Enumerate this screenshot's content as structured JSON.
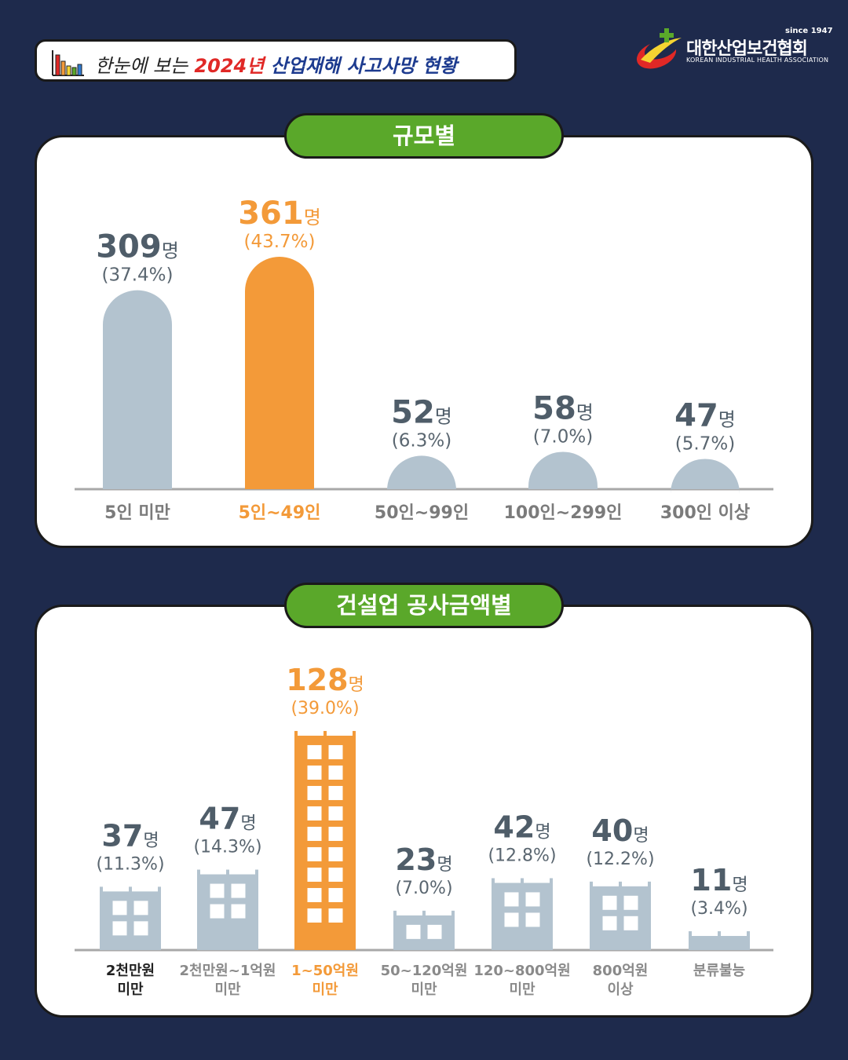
{
  "header": {
    "title_prefix": "한눈에 보는",
    "title_year": "2024년",
    "title_suffix": "산업재해 사고사망 현황"
  },
  "logo": {
    "since": "since 1947",
    "name_ko": "대한산업보건협회",
    "name_en": "KOREAN INDUSTRIAL HEALTH ASSOCIATION"
  },
  "colors": {
    "background": "#1e2a4c",
    "highlight": "#f39a39",
    "bar_default": "#b3c3cf",
    "pill_green": "#5aa82a",
    "value_text": "#4f5d69"
  },
  "chart_data": [
    {
      "type": "bar",
      "title": "규모별",
      "unit": "명",
      "categories": [
        "5인 미만",
        "5인~49인",
        "50인~99인",
        "100인~299인",
        "300인 이상"
      ],
      "values": [
        309,
        361,
        52,
        58,
        47
      ],
      "percent_labels": [
        "(37.4%)",
        "(43.7%)",
        "(6.3%)",
        "(7.0%)",
        "(5.7%)"
      ],
      "highlight_index": 1
    },
    {
      "type": "bar",
      "title": "건설업 공사금액별",
      "unit": "명",
      "categories": [
        [
          "2천만원",
          "미만"
        ],
        [
          "2천만원~1억원",
          "미만"
        ],
        [
          "1~50억원",
          "미만"
        ],
        [
          "50~120억원",
          "미만"
        ],
        [
          "120~800억원",
          "미만"
        ],
        [
          "800억원",
          "이상"
        ],
        [
          "분류불능"
        ]
      ],
      "values": [
        37,
        47,
        128,
        23,
        42,
        40,
        11
      ],
      "percent_labels": [
        "(11.3%)",
        "(14.3%)",
        "(39.0%)",
        "(7.0%)",
        "(12.8%)",
        "(12.2%)",
        "(3.4%)"
      ],
      "highlight_index": 2
    }
  ]
}
